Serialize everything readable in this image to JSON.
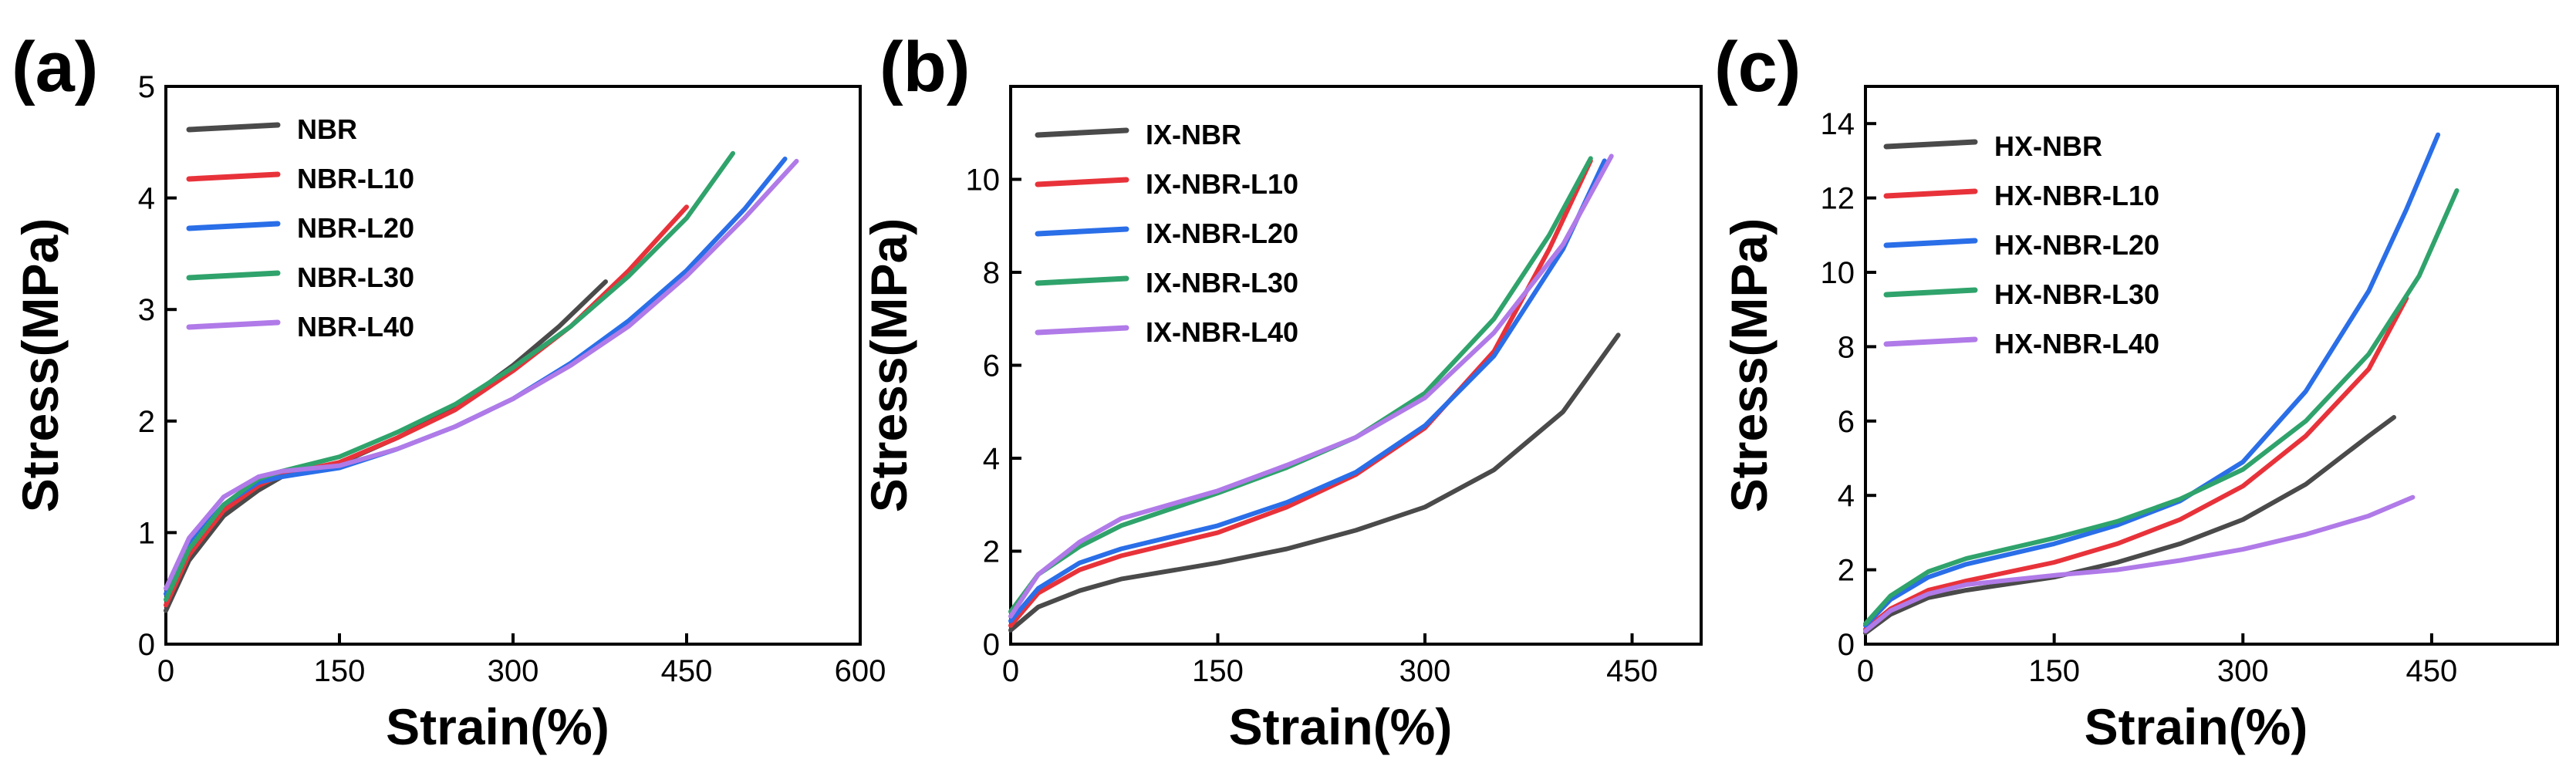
{
  "chart_data": [
    {
      "type": "line",
      "panel_label": "(a)",
      "xlabel": "Strain(%)",
      "ylabel": "Stress(MPa)",
      "xlim": [
        0,
        600
      ],
      "ylim": [
        0,
        5
      ],
      "xticks": [
        0,
        150,
        300,
        450,
        600
      ],
      "yticks": [
        0,
        1,
        2,
        3,
        4,
        5
      ],
      "legend_position": "top-left",
      "series": [
        {
          "name": "NBR",
          "color": "#4a4a4a",
          "points": [
            [
              0,
              0.3
            ],
            [
              20,
              0.75
            ],
            [
              50,
              1.15
            ],
            [
              80,
              1.38
            ],
            [
              100,
              1.5
            ],
            [
              150,
              1.62
            ],
            [
              200,
              1.85
            ],
            [
              250,
              2.12
            ],
            [
              300,
              2.5
            ],
            [
              340,
              2.85
            ],
            [
              380,
              3.25
            ]
          ]
        },
        {
          "name": "NBR-L10",
          "color": "#e8323a",
          "points": [
            [
              0,
              0.35
            ],
            [
              20,
              0.8
            ],
            [
              50,
              1.2
            ],
            [
              80,
              1.42
            ],
            [
              100,
              1.52
            ],
            [
              150,
              1.63
            ],
            [
              200,
              1.85
            ],
            [
              250,
              2.1
            ],
            [
              300,
              2.45
            ],
            [
              350,
              2.85
            ],
            [
              400,
              3.35
            ],
            [
              450,
              3.92
            ]
          ]
        },
        {
          "name": "NBR-L20",
          "color": "#2a6ee8",
          "points": [
            [
              0,
              0.45
            ],
            [
              20,
              0.9
            ],
            [
              50,
              1.25
            ],
            [
              80,
              1.45
            ],
            [
              100,
              1.5
            ],
            [
              150,
              1.58
            ],
            [
              200,
              1.75
            ],
            [
              250,
              1.95
            ],
            [
              300,
              2.2
            ],
            [
              350,
              2.52
            ],
            [
              400,
              2.9
            ],
            [
              450,
              3.35
            ],
            [
              500,
              3.9
            ],
            [
              535,
              4.35
            ]
          ]
        },
        {
          "name": "NBR-L30",
          "color": "#2fa36b",
          "points": [
            [
              0,
              0.4
            ],
            [
              20,
              0.85
            ],
            [
              50,
              1.25
            ],
            [
              80,
              1.48
            ],
            [
              100,
              1.55
            ],
            [
              150,
              1.68
            ],
            [
              200,
              1.9
            ],
            [
              250,
              2.15
            ],
            [
              300,
              2.48
            ],
            [
              350,
              2.85
            ],
            [
              400,
              3.3
            ],
            [
              450,
              3.82
            ],
            [
              490,
              4.4
            ]
          ]
        },
        {
          "name": "NBR-L40",
          "color": "#b07ae8",
          "points": [
            [
              0,
              0.5
            ],
            [
              20,
              0.95
            ],
            [
              50,
              1.32
            ],
            [
              80,
              1.5
            ],
            [
              100,
              1.55
            ],
            [
              150,
              1.6
            ],
            [
              200,
              1.75
            ],
            [
              250,
              1.95
            ],
            [
              300,
              2.2
            ],
            [
              350,
              2.5
            ],
            [
              400,
              2.85
            ],
            [
              450,
              3.3
            ],
            [
              500,
              3.82
            ],
            [
              545,
              4.33
            ]
          ]
        }
      ]
    },
    {
      "type": "line",
      "panel_label": "(b)",
      "xlabel": "Strain(%)",
      "ylabel": "Stress(MPa)",
      "xlim": [
        0,
        500
      ],
      "ylim": [
        0,
        12
      ],
      "xticks": [
        0,
        150,
        300,
        450
      ],
      "yticks": [
        0,
        2,
        4,
        6,
        8,
        10
      ],
      "legend_position": "top-left",
      "series": [
        {
          "name": "IX-NBR",
          "color": "#4a4a4a",
          "points": [
            [
              0,
              0.3
            ],
            [
              20,
              0.8
            ],
            [
              50,
              1.15
            ],
            [
              80,
              1.4
            ],
            [
              150,
              1.75
            ],
            [
              200,
              2.05
            ],
            [
              250,
              2.45
            ],
            [
              300,
              2.95
            ],
            [
              350,
              3.75
            ],
            [
              400,
              5.0
            ],
            [
              440,
              6.65
            ]
          ]
        },
        {
          "name": "IX-NBR-L10",
          "color": "#e8323a",
          "points": [
            [
              0,
              0.4
            ],
            [
              20,
              1.1
            ],
            [
              50,
              1.6
            ],
            [
              80,
              1.9
            ],
            [
              150,
              2.4
            ],
            [
              200,
              2.95
            ],
            [
              250,
              3.65
            ],
            [
              300,
              4.65
            ],
            [
              350,
              6.3
            ],
            [
              390,
              8.5
            ],
            [
              420,
              10.4
            ]
          ]
        },
        {
          "name": "IX-NBR-L20",
          "color": "#2a6ee8",
          "points": [
            [
              0,
              0.5
            ],
            [
              20,
              1.2
            ],
            [
              50,
              1.75
            ],
            [
              80,
              2.05
            ],
            [
              150,
              2.55
            ],
            [
              200,
              3.05
            ],
            [
              250,
              3.7
            ],
            [
              300,
              4.7
            ],
            [
              350,
              6.2
            ],
            [
              400,
              8.5
            ],
            [
              430,
              10.4
            ]
          ]
        },
        {
          "name": "IX-NBR-L30",
          "color": "#2fa36b",
          "points": [
            [
              0,
              0.7
            ],
            [
              20,
              1.5
            ],
            [
              50,
              2.1
            ],
            [
              80,
              2.55
            ],
            [
              150,
              3.25
            ],
            [
              200,
              3.8
            ],
            [
              250,
              4.45
            ],
            [
              300,
              5.4
            ],
            [
              350,
              7.0
            ],
            [
              390,
              8.8
            ],
            [
              420,
              10.45
            ]
          ]
        },
        {
          "name": "IX-NBR-L40",
          "color": "#b07ae8",
          "points": [
            [
              0,
              0.6
            ],
            [
              20,
              1.5
            ],
            [
              50,
              2.2
            ],
            [
              80,
              2.7
            ],
            [
              150,
              3.3
            ],
            [
              200,
              3.85
            ],
            [
              250,
              4.45
            ],
            [
              300,
              5.3
            ],
            [
              350,
              6.7
            ],
            [
              400,
              8.6
            ],
            [
              435,
              10.5
            ]
          ]
        }
      ]
    },
    {
      "type": "line",
      "panel_label": "(c)",
      "xlabel": "Strain(%)",
      "ylabel": "Stress(MPa)",
      "xlim": [
        0,
        550
      ],
      "ylim": [
        0,
        15
      ],
      "xticks": [
        0,
        150,
        300,
        450
      ],
      "yticks": [
        0,
        2,
        4,
        6,
        8,
        10,
        12,
        14
      ],
      "legend_position": "top-left",
      "series": [
        {
          "name": "HX-NBR",
          "color": "#4a4a4a",
          "points": [
            [
              0,
              0.3
            ],
            [
              20,
              0.8
            ],
            [
              50,
              1.25
            ],
            [
              80,
              1.45
            ],
            [
              150,
              1.8
            ],
            [
              200,
              2.2
            ],
            [
              250,
              2.7
            ],
            [
              300,
              3.35
            ],
            [
              350,
              4.3
            ],
            [
              400,
              5.6
            ],
            [
              420,
              6.1
            ]
          ]
        },
        {
          "name": "HX-NBR-L10",
          "color": "#e8323a",
          "points": [
            [
              0,
              0.4
            ],
            [
              20,
              0.95
            ],
            [
              50,
              1.45
            ],
            [
              80,
              1.7
            ],
            [
              150,
              2.2
            ],
            [
              200,
              2.7
            ],
            [
              250,
              3.35
            ],
            [
              300,
              4.25
            ],
            [
              350,
              5.6
            ],
            [
              400,
              7.4
            ],
            [
              430,
              9.3
            ]
          ]
        },
        {
          "name": "HX-NBR-L20",
          "color": "#2a6ee8",
          "points": [
            [
              0,
              0.5
            ],
            [
              20,
              1.2
            ],
            [
              50,
              1.8
            ],
            [
              80,
              2.15
            ],
            [
              150,
              2.7
            ],
            [
              200,
              3.2
            ],
            [
              250,
              3.85
            ],
            [
              300,
              4.9
            ],
            [
              350,
              6.8
            ],
            [
              400,
              9.5
            ],
            [
              430,
              11.7
            ],
            [
              455,
              13.7
            ]
          ]
        },
        {
          "name": "HX-NBR-L30",
          "color": "#2fa36b",
          "points": [
            [
              0,
              0.55
            ],
            [
              20,
              1.3
            ],
            [
              50,
              1.95
            ],
            [
              80,
              2.3
            ],
            [
              150,
              2.85
            ],
            [
              200,
              3.3
            ],
            [
              250,
              3.9
            ],
            [
              300,
              4.7
            ],
            [
              350,
              6.0
            ],
            [
              400,
              7.8
            ],
            [
              440,
              9.9
            ],
            [
              470,
              12.2
            ]
          ]
        },
        {
          "name": "HX-NBR-L40",
          "color": "#b07ae8",
          "points": [
            [
              0,
              0.35
            ],
            [
              20,
              0.9
            ],
            [
              50,
              1.35
            ],
            [
              80,
              1.6
            ],
            [
              150,
              1.85
            ],
            [
              200,
              2.0
            ],
            [
              250,
              2.25
            ],
            [
              300,
              2.55
            ],
            [
              350,
              2.95
            ],
            [
              400,
              3.45
            ],
            [
              435,
              3.95
            ]
          ]
        }
      ]
    }
  ]
}
